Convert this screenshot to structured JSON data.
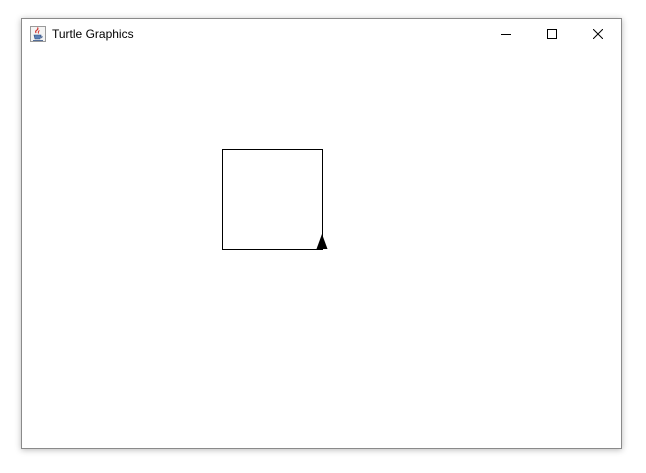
{
  "window": {
    "title": "Turtle Graphics",
    "app_icon": "java-coffee-cup-icon",
    "controls": {
      "minimize_icon": "minimize-icon",
      "maximize_icon": "maximize-icon",
      "close_icon": "close-icon"
    }
  },
  "canvas": {
    "background": "#ffffff",
    "stroke_color": "#000000",
    "drawn_shape": "square",
    "turtle": {
      "icon": "turtle-triangle-icon",
      "color": "#000000",
      "heading": "up"
    }
  }
}
